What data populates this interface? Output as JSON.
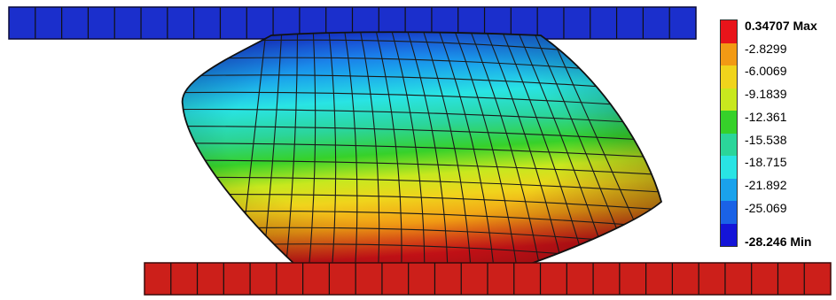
{
  "legend": {
    "max_value": "0.34707",
    "max_tag": "Max",
    "min_value": "-28.246",
    "min_tag": "Min",
    "levels": [
      "-2.8299",
      "-6.0069",
      "-9.1839",
      "-12.361",
      "-15.538",
      "-18.715",
      "-21.892",
      "-25.069"
    ],
    "band_colors": [
      "#e8141a",
      "#f29a14",
      "#f0d41c",
      "#c8e81e",
      "#36d12a",
      "#2bd59a",
      "#29e4e4",
      "#1aa2ec",
      "#1a62e6",
      "#1414d8"
    ]
  },
  "plates": {
    "top_color": "#1b2fcc",
    "bottom_color": "#cc1f1a",
    "top_elements": 26,
    "bottom_elements": 26
  },
  "body": {
    "mesh_rows": 14,
    "mesh_cols": 18
  }
}
